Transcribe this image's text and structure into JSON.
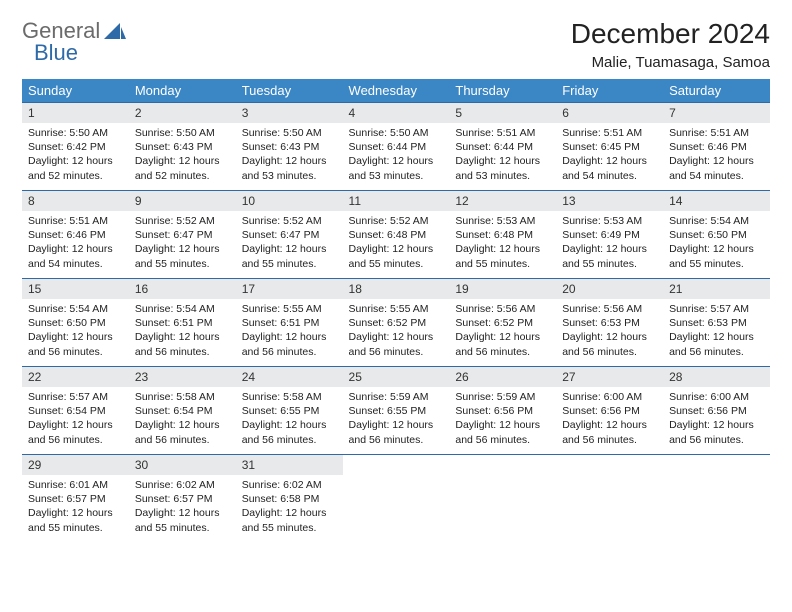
{
  "logo": {
    "text1": "General",
    "text2": "Blue"
  },
  "title": "December 2024",
  "location": "Malie, Tuamasaga, Samoa",
  "colors": {
    "header_bg": "#3b86c4",
    "header_text": "#ffffff",
    "daynum_bg": "#e8e9ea",
    "row_border": "#2f6aa8",
    "logo_gray": "#6b6b6b",
    "logo_blue": "#2f6aa8"
  },
  "weekdays": [
    "Sunday",
    "Monday",
    "Tuesday",
    "Wednesday",
    "Thursday",
    "Friday",
    "Saturday"
  ],
  "weeks": [
    [
      {
        "n": "1",
        "sr": "5:50 AM",
        "ss": "6:42 PM",
        "dl": "12 hours and 52 minutes."
      },
      {
        "n": "2",
        "sr": "5:50 AM",
        "ss": "6:43 PM",
        "dl": "12 hours and 52 minutes."
      },
      {
        "n": "3",
        "sr": "5:50 AM",
        "ss": "6:43 PM",
        "dl": "12 hours and 53 minutes."
      },
      {
        "n": "4",
        "sr": "5:50 AM",
        "ss": "6:44 PM",
        "dl": "12 hours and 53 minutes."
      },
      {
        "n": "5",
        "sr": "5:51 AM",
        "ss": "6:44 PM",
        "dl": "12 hours and 53 minutes."
      },
      {
        "n": "6",
        "sr": "5:51 AM",
        "ss": "6:45 PM",
        "dl": "12 hours and 54 minutes."
      },
      {
        "n": "7",
        "sr": "5:51 AM",
        "ss": "6:46 PM",
        "dl": "12 hours and 54 minutes."
      }
    ],
    [
      {
        "n": "8",
        "sr": "5:51 AM",
        "ss": "6:46 PM",
        "dl": "12 hours and 54 minutes."
      },
      {
        "n": "9",
        "sr": "5:52 AM",
        "ss": "6:47 PM",
        "dl": "12 hours and 55 minutes."
      },
      {
        "n": "10",
        "sr": "5:52 AM",
        "ss": "6:47 PM",
        "dl": "12 hours and 55 minutes."
      },
      {
        "n": "11",
        "sr": "5:52 AM",
        "ss": "6:48 PM",
        "dl": "12 hours and 55 minutes."
      },
      {
        "n": "12",
        "sr": "5:53 AM",
        "ss": "6:48 PM",
        "dl": "12 hours and 55 minutes."
      },
      {
        "n": "13",
        "sr": "5:53 AM",
        "ss": "6:49 PM",
        "dl": "12 hours and 55 minutes."
      },
      {
        "n": "14",
        "sr": "5:54 AM",
        "ss": "6:50 PM",
        "dl": "12 hours and 55 minutes."
      }
    ],
    [
      {
        "n": "15",
        "sr": "5:54 AM",
        "ss": "6:50 PM",
        "dl": "12 hours and 56 minutes."
      },
      {
        "n": "16",
        "sr": "5:54 AM",
        "ss": "6:51 PM",
        "dl": "12 hours and 56 minutes."
      },
      {
        "n": "17",
        "sr": "5:55 AM",
        "ss": "6:51 PM",
        "dl": "12 hours and 56 minutes."
      },
      {
        "n": "18",
        "sr": "5:55 AM",
        "ss": "6:52 PM",
        "dl": "12 hours and 56 minutes."
      },
      {
        "n": "19",
        "sr": "5:56 AM",
        "ss": "6:52 PM",
        "dl": "12 hours and 56 minutes."
      },
      {
        "n": "20",
        "sr": "5:56 AM",
        "ss": "6:53 PM",
        "dl": "12 hours and 56 minutes."
      },
      {
        "n": "21",
        "sr": "5:57 AM",
        "ss": "6:53 PM",
        "dl": "12 hours and 56 minutes."
      }
    ],
    [
      {
        "n": "22",
        "sr": "5:57 AM",
        "ss": "6:54 PM",
        "dl": "12 hours and 56 minutes."
      },
      {
        "n": "23",
        "sr": "5:58 AM",
        "ss": "6:54 PM",
        "dl": "12 hours and 56 minutes."
      },
      {
        "n": "24",
        "sr": "5:58 AM",
        "ss": "6:55 PM",
        "dl": "12 hours and 56 minutes."
      },
      {
        "n": "25",
        "sr": "5:59 AM",
        "ss": "6:55 PM",
        "dl": "12 hours and 56 minutes."
      },
      {
        "n": "26",
        "sr": "5:59 AM",
        "ss": "6:56 PM",
        "dl": "12 hours and 56 minutes."
      },
      {
        "n": "27",
        "sr": "6:00 AM",
        "ss": "6:56 PM",
        "dl": "12 hours and 56 minutes."
      },
      {
        "n": "28",
        "sr": "6:00 AM",
        "ss": "6:56 PM",
        "dl": "12 hours and 56 minutes."
      }
    ],
    [
      {
        "n": "29",
        "sr": "6:01 AM",
        "ss": "6:57 PM",
        "dl": "12 hours and 55 minutes."
      },
      {
        "n": "30",
        "sr": "6:02 AM",
        "ss": "6:57 PM",
        "dl": "12 hours and 55 minutes."
      },
      {
        "n": "31",
        "sr": "6:02 AM",
        "ss": "6:58 PM",
        "dl": "12 hours and 55 minutes."
      },
      null,
      null,
      null,
      null
    ]
  ],
  "labels": {
    "sunrise": "Sunrise:",
    "sunset": "Sunset:",
    "daylight": "Daylight:"
  }
}
